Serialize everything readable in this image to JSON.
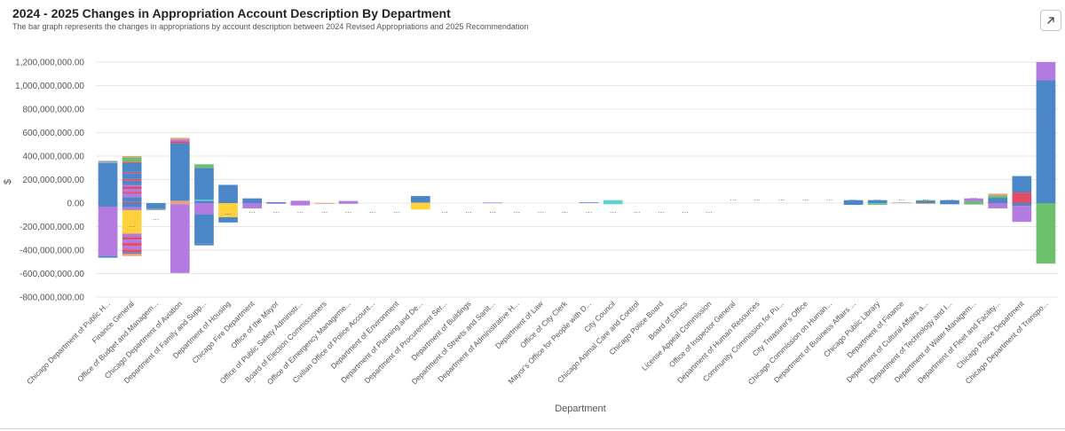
{
  "header": {
    "title": "2024 - 2025 Changes in Appropriation Account Description By Department",
    "subtitle": "The bar graph represents the changes in appropriations by account description between 2024 Revised Appropriations and 2025 Recommendation"
  },
  "icons": {
    "expand": "expand-arrow-icon"
  },
  "chart_data": {
    "type": "bar",
    "stacked": true,
    "xlabel": "Department",
    "ylabel": "$",
    "ylim": [
      -800000000,
      1200000000
    ],
    "yticks": [
      1200000000,
      1000000000,
      800000000,
      600000000,
      400000000,
      200000000,
      0,
      -200000000,
      -400000000,
      -600000000,
      -800000000
    ],
    "ytick_labels": [
      "1,200,000,000.00",
      "1,000,000,000.00",
      "800,000,000.00",
      "600,000,000.00",
      "400,000,000.00",
      "200,000,000.00",
      "0.00",
      "-200,000,000.00",
      "-400,000,000.00",
      "-600,000,000.00",
      "-800,000,000.00"
    ],
    "gridlines": true,
    "small_value_marker": "...",
    "categories": [
      "Chicago Department of Public H...",
      "Finance General",
      "Office of Budget and Managem...",
      "Chicago Department of Aviation",
      "Department of Family and Supp...",
      "Department of Housing",
      "Chicago Fire Department",
      "Office of the Mayor",
      "Office of Public Safety Administr...",
      "Board of Election Commissioners",
      "Office of Emergency Manageme...",
      "Civilian Office of Police Account...",
      "Department of Environment",
      "Department of Planning and De...",
      "Department of Procurement Ser...",
      "Department of Buildings",
      "Department of Streets and Sanit...",
      "Department of Administrative H...",
      "Department of Law",
      "Office of City Clerk",
      "Mayor's Office for People with D...",
      "City Council",
      "Chicago Animal Care and Control",
      "Chicago Police Board",
      "Board of Ethics",
      "License Appeal Commission",
      "Office of Inspector General",
      "Department of Human Resources",
      "Community Commission for Pu...",
      "City Treasurer's Office",
      "Chicago Commission on Human...",
      "Department of Business Affairs ...",
      "Chicago Public Library",
      "Department of Finance",
      "Department of Cultural Affairs a...",
      "Department of Technology and I...",
      "Department of Water Managem...",
      "Department of Fleet and Facility...",
      "Chicago Police Department",
      "Chicago Department of Transpo..."
    ],
    "bars": [
      {
        "pos": [
          [
            "#4a86c8",
            340000000
          ],
          [
            "#9aa7b0",
            20000000
          ]
        ],
        "neg": [
          [
            "#4a86c8",
            30000000
          ],
          [
            "#b37be0",
            420000000
          ],
          [
            "#4a86c8",
            15000000
          ]
        ],
        "marker": false
      },
      {
        "pos": [
          [
            "#e04d68",
            10000000
          ],
          [
            "#4a86c8",
            40000000
          ],
          [
            "#b37be0",
            30000000
          ],
          [
            "#e04d68",
            15000000
          ],
          [
            "#b37be0",
            25000000
          ],
          [
            "#e04d68",
            20000000
          ],
          [
            "#b37be0",
            15000000
          ],
          [
            "#4a86c8",
            35000000
          ],
          [
            "#e04d68",
            15000000
          ],
          [
            "#4a86c8",
            50000000
          ],
          [
            "#e04d68",
            10000000
          ],
          [
            "#4a86c8",
            75000000
          ],
          [
            "#e04d68",
            10000000
          ],
          [
            "#6cc06c",
            40000000
          ],
          [
            "#e8a07a",
            10000000
          ]
        ],
        "neg": [
          [
            "#4a86c8",
            35000000
          ],
          [
            "#b37be0",
            25000000
          ],
          [
            "#ffd23c",
            200000000
          ],
          [
            "#b37be0",
            30000000
          ],
          [
            "#e04d68",
            20000000
          ],
          [
            "#b37be0",
            30000000
          ],
          [
            "#e04d68",
            25000000
          ],
          [
            "#b37be0",
            30000000
          ],
          [
            "#e04d68",
            25000000
          ],
          [
            "#4a86c8",
            10000000
          ],
          [
            "#e8a07a",
            20000000
          ]
        ],
        "marker": true,
        "marker_value": -180000000
      },
      {
        "pos": [],
        "neg": [
          [
            "#4a86c8",
            50000000
          ],
          [
            "#9aa7b0",
            10000000
          ]
        ],
        "marker": true,
        "marker_value": -120000000
      },
      {
        "pos": [
          [
            "#e8a07a",
            20000000
          ],
          [
            "#4a86c8",
            490000000
          ],
          [
            "#e04d68",
            15000000
          ],
          [
            "#b37be0",
            15000000
          ],
          [
            "#e8a07a",
            15000000
          ]
        ],
        "neg": [
          [
            "#e8a07a",
            10000000
          ],
          [
            "#b37be0",
            585000000
          ]
        ],
        "marker": false
      },
      {
        "pos": [
          [
            "#4a86c8",
            20000000
          ],
          [
            "#5fcfcf",
            10000000
          ],
          [
            "#4a86c8",
            270000000
          ],
          [
            "#6cc06c",
            30000000
          ]
        ],
        "neg": [
          [
            "#b37be0",
            95000000
          ],
          [
            "#4a86c8",
            250000000
          ],
          [
            "#4a86c8",
            15000000
          ]
        ],
        "marker": false
      },
      {
        "pos": [
          [
            "#4a86c8",
            155000000
          ]
        ],
        "neg": [
          [
            "#ffd23c",
            120000000
          ],
          [
            "#4a86c8",
            45000000
          ]
        ],
        "marker": true,
        "marker_value": -75000000
      },
      {
        "pos": [
          [
            "#4a86c8",
            40000000
          ]
        ],
        "neg": [
          [
            "#b37be0",
            45000000
          ]
        ],
        "marker": true,
        "marker_value": -60000000
      },
      {
        "pos": [
          [
            "#4a86c8",
            8000000
          ]
        ],
        "neg": [
          [
            "#b37be0",
            4000000
          ]
        ],
        "marker": true,
        "marker_value": -60000000
      },
      {
        "pos": [
          [
            "#b37be0",
            20000000
          ]
        ],
        "neg": [
          [
            "#b37be0",
            20000000
          ]
        ],
        "marker": true,
        "marker_value": -60000000
      },
      {
        "pos": [
          [
            "#e8a07a",
            1500000
          ]
        ],
        "neg": [
          [
            "#e8a07a",
            1500000
          ]
        ],
        "marker": true,
        "marker_value": -60000000
      },
      {
        "pos": [
          [
            "#b37be0",
            18000000
          ]
        ],
        "neg": [
          [
            "#b37be0",
            6000000
          ]
        ],
        "marker": true,
        "marker_value": -60000000
      },
      {
        "pos": [],
        "neg": [],
        "marker": true,
        "marker_value": -60000000
      },
      {
        "pos": [],
        "neg": [],
        "marker": true,
        "marker_value": -60000000
      },
      {
        "pos": [
          [
            "#e8a07a",
            5000000
          ],
          [
            "#4a86c8",
            55000000
          ]
        ],
        "neg": [
          [
            "#ffd23c",
            55000000
          ]
        ],
        "marker": false
      },
      {
        "pos": [],
        "neg": [],
        "marker": true,
        "marker_value": -60000000
      },
      {
        "pos": [],
        "neg": [],
        "marker": true,
        "marker_value": -60000000
      },
      {
        "pos": [
          [
            "#b37be0",
            5000000
          ]
        ],
        "neg": [],
        "marker": true,
        "marker_value": -60000000
      },
      {
        "pos": [],
        "neg": [],
        "marker": true,
        "marker_value": -60000000
      },
      {
        "pos": [],
        "neg": [],
        "marker": true,
        "marker_value": -60000000
      },
      {
        "pos": [],
        "neg": [],
        "marker": true,
        "marker_value": -60000000
      },
      {
        "pos": [
          [
            "#4a86c8",
            6000000
          ]
        ],
        "neg": [],
        "marker": true,
        "marker_value": -60000000
      },
      {
        "pos": [
          [
            "#5fcfcf",
            25000000
          ]
        ],
        "neg": [
          [
            "#5fcfcf",
            10000000
          ]
        ],
        "marker": true,
        "marker_value": -60000000
      },
      {
        "pos": [],
        "neg": [],
        "marker": true,
        "marker_value": -60000000
      },
      {
        "pos": [],
        "neg": [],
        "marker": true,
        "marker_value": -60000000
      },
      {
        "pos": [],
        "neg": [],
        "marker": true,
        "marker_value": -60000000
      },
      {
        "pos": [],
        "neg": [],
        "marker": true,
        "marker_value": -60000000
      },
      {
        "pos": [],
        "neg": [],
        "marker": true,
        "marker_value": 45000000
      },
      {
        "pos": [],
        "neg": [],
        "marker": true,
        "marker_value": 45000000
      },
      {
        "pos": [],
        "neg": [],
        "marker": true,
        "marker_value": 45000000
      },
      {
        "pos": [],
        "neg": [],
        "marker": true,
        "marker_value": 45000000
      },
      {
        "pos": [],
        "neg": [],
        "marker": true,
        "marker_value": 45000000
      },
      {
        "pos": [
          [
            "#4a86c8",
            25000000
          ]
        ],
        "neg": [
          [
            "#4a86c8",
            15000000
          ]
        ],
        "marker": true,
        "marker_value": 45000000
      },
      {
        "pos": [
          [
            "#4a86c8",
            25000000
          ]
        ],
        "neg": [
          [
            "#5fcfcf",
            5000000
          ],
          [
            "#6cc06c",
            10000000
          ]
        ],
        "marker": true,
        "marker_value": 45000000
      },
      {
        "pos": [
          [
            "#9aa7b0",
            5000000
          ]
        ],
        "neg": [],
        "marker": true,
        "marker_value": 45000000
      },
      {
        "pos": [
          [
            "#4a86c8",
            20000000
          ],
          [
            "#6cc06c",
            5000000
          ]
        ],
        "neg": [
          [
            "#e8a07a",
            8000000
          ]
        ],
        "marker": true,
        "marker_value": 45000000
      },
      {
        "pos": [
          [
            "#4a86c8",
            25000000
          ]
        ],
        "neg": [
          [
            "#4a86c8",
            10000000
          ]
        ],
        "marker": true,
        "marker_value": 45000000
      },
      {
        "pos": [
          [
            "#6cc06c",
            15000000
          ],
          [
            "#b37be0",
            25000000
          ]
        ],
        "neg": [
          [
            "#6cc06c",
            12000000
          ]
        ],
        "marker": true,
        "marker_value": 60000000
      },
      {
        "pos": [
          [
            "#4a86c8",
            45000000
          ],
          [
            "#6cc06c",
            20000000
          ],
          [
            "#e8a07a",
            15000000
          ]
        ],
        "neg": [
          [
            "#b37be0",
            45000000
          ]
        ],
        "marker": false
      },
      {
        "pos": [
          [
            "#e04d68",
            90000000
          ],
          [
            "#4a86c8",
            140000000
          ]
        ],
        "neg": [
          [
            "#4a86c8",
            25000000
          ],
          [
            "#b37be0",
            135000000
          ]
        ],
        "marker": false
      },
      {
        "pos": [
          [
            "#4a86c8",
            1045000000
          ],
          [
            "#b37be0",
            155000000
          ]
        ],
        "neg": [
          [
            "#6cc06c",
            515000000
          ]
        ],
        "marker": true,
        "marker_value": 700000000
      }
    ]
  }
}
